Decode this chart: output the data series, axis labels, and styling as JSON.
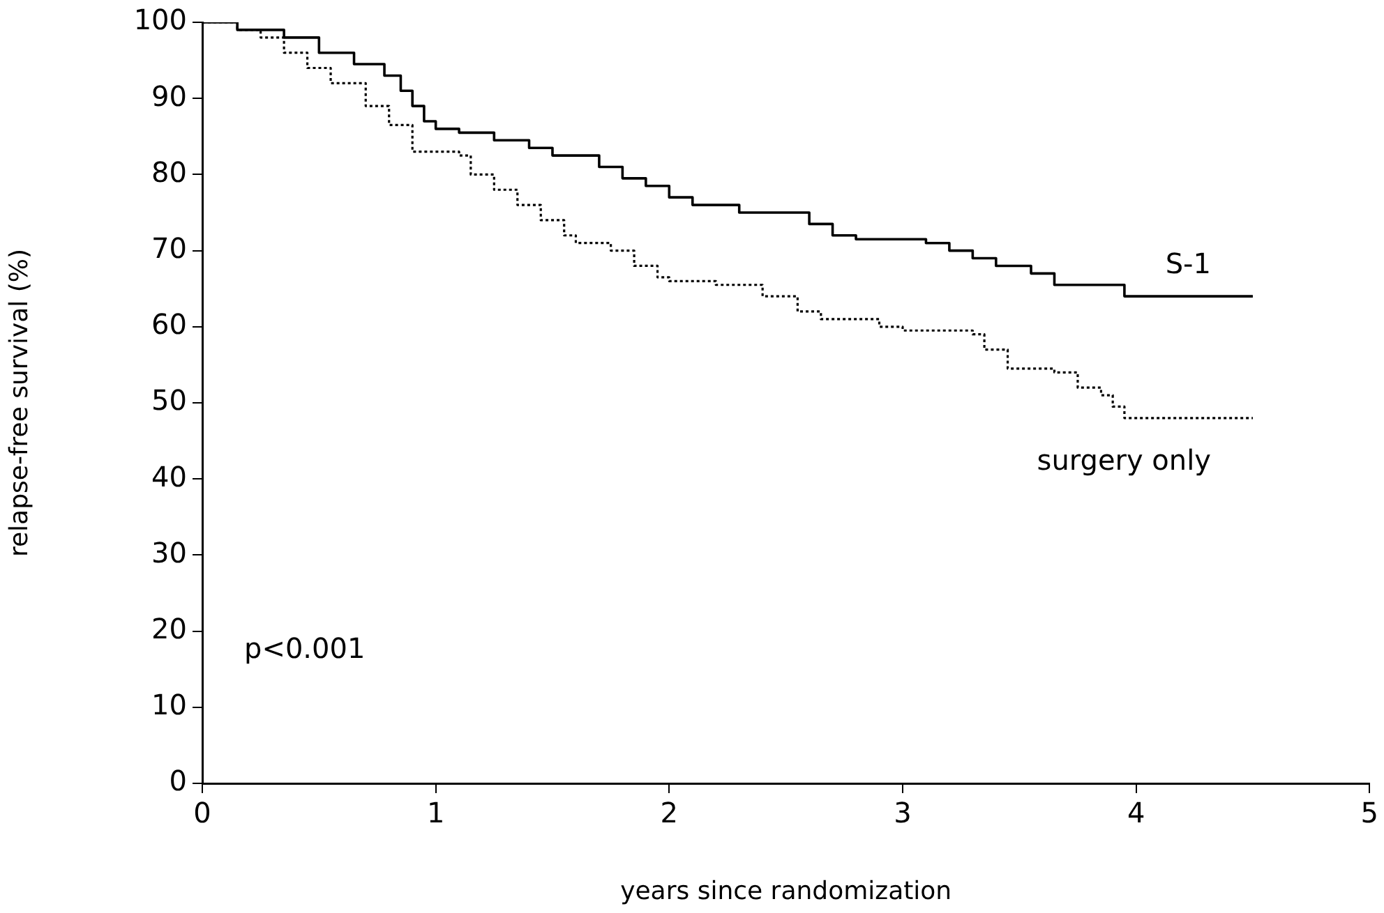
{
  "chart_data": {
    "type": "step",
    "xlabel": "years since randomization",
    "ylabel": "relapse-free survival (%)",
    "xlim": [
      0,
      5
    ],
    "xticks": [
      0,
      1,
      2,
      3,
      4,
      5
    ],
    "ylim": [
      0,
      100
    ],
    "yticks": [
      0,
      10,
      20,
      30,
      40,
      50,
      60,
      70,
      80,
      90,
      100
    ],
    "grid": false,
    "legend": false,
    "marker": "none",
    "annotations": [
      "p<0.001"
    ],
    "series": [
      {
        "name": "S-1",
        "color": "#000000",
        "line_style": "solid",
        "x": [
          0,
          0.15,
          0.35,
          0.5,
          0.65,
          0.78,
          0.85,
          0.9,
          0.95,
          1.0,
          1.1,
          1.25,
          1.4,
          1.5,
          1.7,
          1.8,
          1.9,
          2.0,
          2.1,
          2.3,
          2.6,
          2.7,
          2.8,
          3.1,
          3.2,
          3.3,
          3.4,
          3.55,
          3.65,
          3.95,
          4.5
        ],
        "values": [
          100,
          99,
          98,
          96,
          94.5,
          93,
          91,
          89,
          87,
          86,
          85.5,
          84.5,
          83.5,
          82.5,
          81,
          79.5,
          78.5,
          77,
          76,
          75,
          73.5,
          72,
          71.5,
          71,
          70,
          69,
          68,
          67,
          65.5,
          64,
          64
        ]
      },
      {
        "name": "surgery only",
        "color": "#000000",
        "line_style": "dotted",
        "x": [
          0,
          0.15,
          0.25,
          0.35,
          0.45,
          0.55,
          0.7,
          0.8,
          0.9,
          1.1,
          1.15,
          1.25,
          1.35,
          1.45,
          1.55,
          1.6,
          1.75,
          1.85,
          1.95,
          2.0,
          2.2,
          2.4,
          2.55,
          2.65,
          2.9,
          3.0,
          3.3,
          3.35,
          3.45,
          3.65,
          3.75,
          3.85,
          3.9,
          3.95,
          4.5
        ],
        "values": [
          100,
          99,
          98,
          96,
          94,
          92,
          89,
          86.5,
          83,
          82.5,
          80,
          78,
          76,
          74,
          72,
          71,
          70,
          68,
          66.5,
          66,
          65.5,
          64,
          62,
          61,
          60,
          59.5,
          59,
          57,
          54.5,
          54,
          52,
          51,
          49.5,
          48,
          48
        ]
      }
    ]
  }
}
